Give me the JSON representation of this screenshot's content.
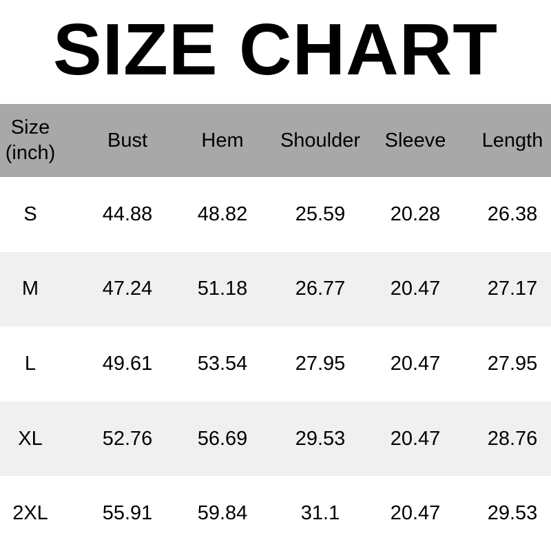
{
  "title": "SIZE CHART",
  "table": {
    "headers": [
      "Size\n(inch)",
      "Bust",
      "Hem",
      "Shoulder",
      "Sleeve",
      "Length"
    ],
    "rows": [
      [
        "S",
        "44.88",
        "48.82",
        "25.59",
        "20.28",
        "26.38"
      ],
      [
        "M",
        "47.24",
        "51.18",
        "26.77",
        "20.47",
        "27.17"
      ],
      [
        "L",
        "49.61",
        "53.54",
        "27.95",
        "20.47",
        "27.95"
      ],
      [
        "XL",
        "52.76",
        "56.69",
        "29.53",
        "20.47",
        "28.76"
      ],
      [
        "2XL",
        "55.91",
        "59.84",
        "31.1",
        "20.47",
        "29.53"
      ]
    ]
  },
  "colors": {
    "header_bg": "#a8a8a8",
    "alt_row_bg": "#f0f0f0"
  }
}
